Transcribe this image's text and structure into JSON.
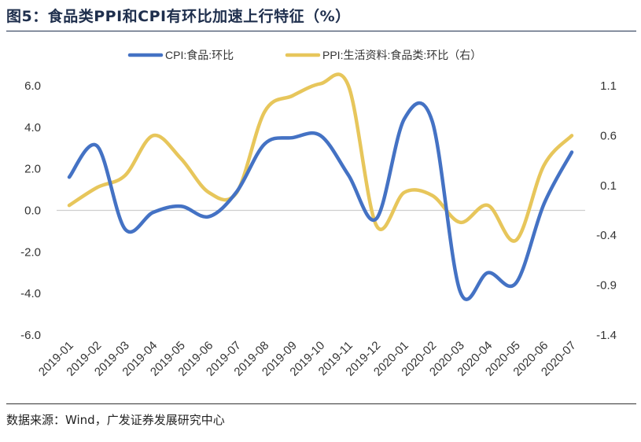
{
  "title": "图5：食品类PPI和CPI有环比加速上行特征（%）",
  "source": "数据来源：Wind，广发证券发展研究中心",
  "chart_data": {
    "type": "line",
    "categories": [
      "2019-01",
      "2019-02",
      "2019-03",
      "2019-04",
      "2019-05",
      "2019-06",
      "2019-07",
      "2019-08",
      "2019-09",
      "2019-10",
      "2019-11",
      "2019-12",
      "2020-01",
      "2020-02",
      "2020-03",
      "2020-04",
      "2020-05",
      "2020-06",
      "2020-07"
    ],
    "y_left": {
      "min": -6.0,
      "max": 6.0,
      "ticks": [
        6.0,
        4.0,
        2.0,
        0.0,
        -2.0,
        -4.0,
        -6.0
      ],
      "tick_labels": [
        "6.0",
        "4.0",
        "2.0",
        "0.0",
        "-2.0",
        "-4.0",
        "-6.0"
      ]
    },
    "y_right": {
      "min": -1.4,
      "max": 1.1,
      "ticks": [
        1.1,
        0.6,
        0.1,
        -0.4,
        -0.9,
        -1.4
      ],
      "tick_labels": [
        "1.1",
        "0.6",
        "0.1",
        "-0.4",
        "-0.9",
        "-1.4"
      ]
    },
    "series": [
      {
        "name": "CPI:食品:环比",
        "axis": "left",
        "color": "#4472c4",
        "values": [
          1.6,
          3.1,
          -0.9,
          -0.1,
          0.2,
          -0.3,
          0.9,
          3.2,
          3.5,
          3.6,
          1.7,
          -0.4,
          4.4,
          4.3,
          -3.9,
          -3.0,
          -3.5,
          0.3,
          2.8
        ]
      },
      {
        "name": "PPI:生活资料:食品类:环比（右）",
        "axis": "right",
        "color": "#e7c65b",
        "values": [
          -0.1,
          0.08,
          0.2,
          0.6,
          0.37,
          0.03,
          0.03,
          0.84,
          1.0,
          1.12,
          1.1,
          -0.3,
          0.03,
          0.0,
          -0.27,
          -0.1,
          -0.45,
          0.3,
          0.6
        ]
      }
    ]
  }
}
